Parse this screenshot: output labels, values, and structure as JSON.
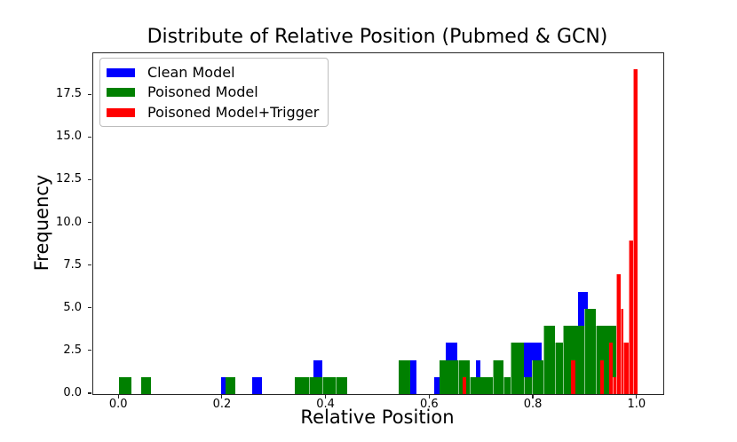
{
  "title": "Distribute of Relative Position (Pubmed & GCN)",
  "xlabel": "Relative Position",
  "ylabel": "Frequency",
  "legend": {
    "items": [
      {
        "label": "Clean Model",
        "color": "#0000ff"
      },
      {
        "label": "Poisoned Model",
        "color": "#008000"
      },
      {
        "label": "Poisoned Model+Trigger",
        "color": "#ff0000"
      }
    ]
  },
  "axes": {
    "xlim": [
      -0.05,
      1.05
    ],
    "ylim": [
      0,
      19.95
    ],
    "xticks": {
      "values": [
        0.0,
        0.2,
        0.4,
        0.6,
        0.8,
        1.0
      ],
      "labels": [
        "0.0",
        "0.2",
        "0.4",
        "0.6",
        "0.8",
        "1.0"
      ]
    },
    "yticks": {
      "values": [
        0.0,
        2.5,
        5.0,
        7.5,
        10.0,
        12.5,
        15.0,
        17.5
      ],
      "labels": [
        "0.0",
        "2.5",
        "5.0",
        "7.5",
        "10.0",
        "12.5",
        "15.0",
        "17.5"
      ]
    },
    "spine_color": "#262626",
    "background": "#ffffff"
  },
  "chart_data": {
    "type": "bar",
    "subtype": "overlapping-histogram",
    "title": "Distribute of Relative Position (Pubmed & GCN)",
    "xlabel": "Relative Position",
    "ylabel": "Frequency",
    "xlim": [
      -0.05,
      1.05
    ],
    "ylim": [
      0,
      19.95
    ],
    "legend_position": "upper left",
    "grid": false,
    "draw_order": [
      "Clean Model",
      "Poisoned Model",
      "Poisoned Model+Trigger"
    ],
    "series": [
      {
        "name": "Clean Model",
        "color": "#0000ff",
        "bars": [
          {
            "x0": 0.197,
            "x1": 0.206,
            "h": 1
          },
          {
            "x0": 0.257,
            "x1": 0.275,
            "h": 1
          },
          {
            "x0": 0.375,
            "x1": 0.392,
            "h": 2
          },
          {
            "x0": 0.56,
            "x1": 0.574,
            "h": 2
          },
          {
            "x0": 0.608,
            "x1": 0.62,
            "h": 1
          },
          {
            "x0": 0.631,
            "x1": 0.652,
            "h": 3
          },
          {
            "x0": 0.689,
            "x1": 0.697,
            "h": 2
          },
          {
            "x0": 0.779,
            "x1": 0.815,
            "h": 3
          },
          {
            "x0": 0.886,
            "x1": 0.904,
            "h": 6
          }
        ]
      },
      {
        "name": "Poisoned Model",
        "color": "#008000",
        "bars": [
          {
            "x0": 0.0,
            "x1": 0.023,
            "h": 1
          },
          {
            "x0": 0.042,
            "x1": 0.062,
            "h": 1
          },
          {
            "x0": 0.205,
            "x1": 0.224,
            "h": 1
          },
          {
            "x0": 0.339,
            "x1": 0.366,
            "h": 1
          },
          {
            "x0": 0.366,
            "x1": 0.392,
            "h": 1,
            "seam": true
          },
          {
            "x0": 0.392,
            "x1": 0.418,
            "h": 1,
            "seam": true
          },
          {
            "x0": 0.418,
            "x1": 0.44,
            "h": 1,
            "seam": true
          },
          {
            "x0": 0.54,
            "x1": 0.562,
            "h": 2
          },
          {
            "x0": 0.618,
            "x1": 0.655,
            "h": 2
          },
          {
            "x0": 0.655,
            "x1": 0.676,
            "h": 2,
            "seam": true
          },
          {
            "x0": 0.676,
            "x1": 0.721,
            "h": 1,
            "seam": true
          },
          {
            "x0": 0.721,
            "x1": 0.742,
            "h": 2,
            "seam": true
          },
          {
            "x0": 0.742,
            "x1": 0.756,
            "h": 1,
            "seam": true
          },
          {
            "x0": 0.756,
            "x1": 0.781,
            "h": 3,
            "seam": true
          },
          {
            "x0": 0.781,
            "x1": 0.797,
            "h": 1,
            "seam": true
          },
          {
            "x0": 0.797,
            "x1": 0.819,
            "h": 2,
            "seam": true
          },
          {
            "x0": 0.819,
            "x1": 0.841,
            "h": 4,
            "seam": true
          },
          {
            "x0": 0.841,
            "x1": 0.856,
            "h": 3,
            "seam": true
          },
          {
            "x0": 0.856,
            "x1": 0.897,
            "h": 4,
            "seam": true
          },
          {
            "x0": 0.897,
            "x1": 0.919,
            "h": 5,
            "seam": true
          },
          {
            "x0": 0.919,
            "x1": 0.96,
            "h": 4,
            "seam": true
          }
        ]
      },
      {
        "name": "Poisoned Model+Trigger",
        "color": "#ff0000",
        "bars": [
          {
            "x0": 0.662,
            "x1": 0.67,
            "h": 1
          },
          {
            "x0": 0.872,
            "x1": 0.88,
            "h": 2
          },
          {
            "x0": 0.928,
            "x1": 0.936,
            "h": 2
          },
          {
            "x0": 0.945,
            "x1": 0.953,
            "h": 3
          },
          {
            "x0": 0.953,
            "x1": 0.96,
            "h": 1,
            "seam": true
          },
          {
            "x0": 0.96,
            "x1": 0.967,
            "h": 7,
            "seam": true
          },
          {
            "x0": 0.967,
            "x1": 0.973,
            "h": 5,
            "seam": true
          },
          {
            "x0": 0.973,
            "x1": 0.983,
            "h": 3,
            "seam": true
          },
          {
            "x0": 0.983,
            "x1": 0.992,
            "h": 9,
            "seam": true
          },
          {
            "x0": 0.992,
            "x1": 1.001,
            "h": 19,
            "seam": true
          }
        ]
      }
    ]
  }
}
